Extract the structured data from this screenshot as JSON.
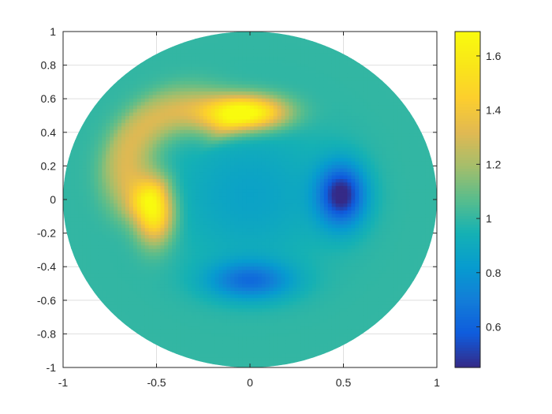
{
  "chart_data": {
    "type": "heatmap",
    "title": "",
    "xlabel": "",
    "ylabel": "",
    "xlim": [
      -1,
      1
    ],
    "ylim": [
      -1,
      1
    ],
    "domain_shape": "unit disk",
    "grid": true,
    "x_ticks": [
      "-1",
      "-0.5",
      "0",
      "0.5",
      "1"
    ],
    "y_ticks": [
      "1",
      "0.8",
      "0.6",
      "0.4",
      "0.2",
      "0",
      "-0.2",
      "-0.4",
      "-0.6",
      "-0.8",
      "-1"
    ],
    "colormap": "parula",
    "colorbar": {
      "placement": "right",
      "range": [
        0.45,
        1.69
      ],
      "ticks": [
        "1.6",
        "1.4",
        "1.2",
        "1",
        "0.8",
        "0.6"
      ]
    },
    "background_value": 1.0,
    "features": [
      {
        "kind": "arc",
        "cx": -0.33,
        "cy": 0.2,
        "r": 0.33,
        "from_deg": 55,
        "to_deg": 215,
        "peak": 1.58,
        "width": 0.1
      },
      {
        "kind": "blob",
        "x": 0.0,
        "y": 0.52,
        "peak": 1.68,
        "sx": 0.14,
        "sy": 0.07
      },
      {
        "kind": "blob",
        "x": -0.51,
        "y": -0.07,
        "peak": 1.62,
        "sx": 0.07,
        "sy": 0.13
      },
      {
        "kind": "blob",
        "x": 0.49,
        "y": 0.03,
        "peak": 0.45,
        "sx": 0.09,
        "sy": 0.13
      },
      {
        "kind": "blob",
        "x": 0.0,
        "y": -0.48,
        "peak": 0.66,
        "sx": 0.16,
        "sy": 0.08
      },
      {
        "kind": "blob",
        "x": 0.0,
        "y": 0.03,
        "peak": 0.86,
        "sx": 0.3,
        "sy": 0.3
      }
    ]
  }
}
